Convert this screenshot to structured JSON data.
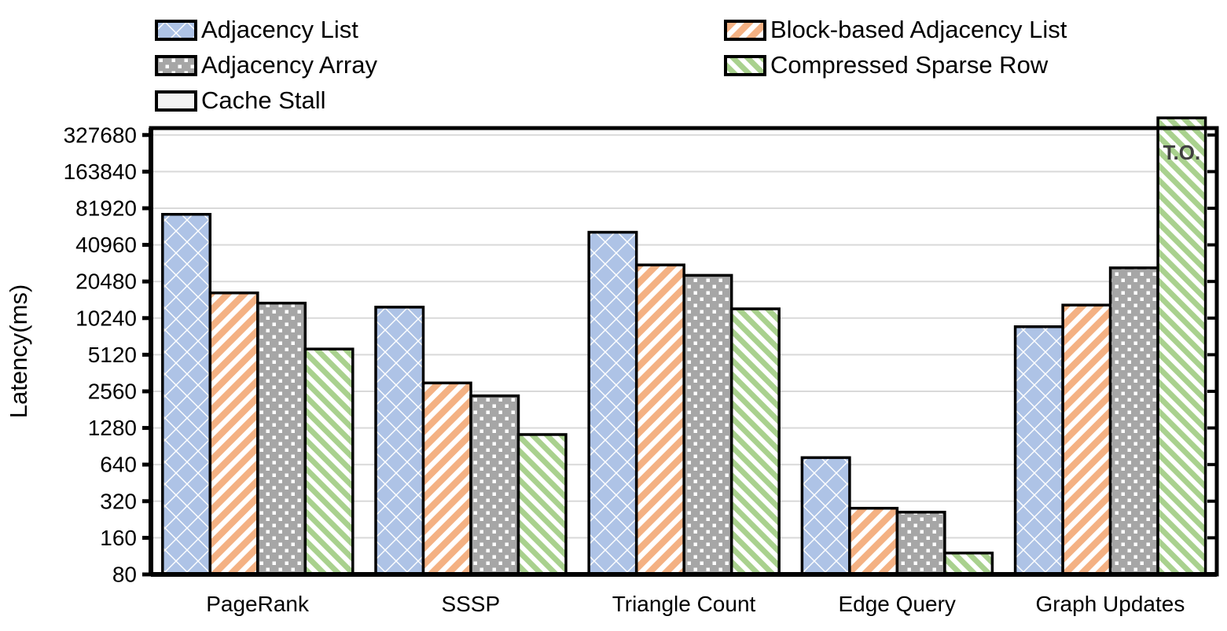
{
  "figure": {
    "kind": "grouped-bar-chart-log-scale",
    "background": "#ffffff",
    "text_color": "#000000",
    "gridline_color": "#d9d9d9",
    "frame_color": "#000000"
  },
  "legend": {
    "position": "top",
    "columns": [
      [
        {
          "label": "Adjacency List",
          "pattern": "blue-diamonds"
        },
        {
          "label": "Adjacency Array",
          "pattern": "gray-dots"
        },
        {
          "label": "Cache Stall",
          "pattern": "plain"
        }
      ],
      [
        {
          "label": "Block-based Adjacency List",
          "pattern": "orange-stripes"
        },
        {
          "label": "Compressed Sparse Row",
          "pattern": "green-stripes"
        }
      ]
    ]
  },
  "chart_data": {
    "type": "bar",
    "scale": "log2",
    "title": "",
    "xlabel": "",
    "ylabel": "Latency(ms)",
    "categories": [
      "PageRank",
      "SSSP",
      "Triangle Count",
      "Edge Query",
      "Graph Updates"
    ],
    "yticks": [
      80,
      160,
      320,
      640,
      1280,
      2560,
      5120,
      10240,
      20480,
      40960,
      81920,
      163840,
      327680
    ],
    "ylim": [
      80,
      450000
    ],
    "grid": "horizontal",
    "legend_position": "top",
    "series": [
      {
        "name": "Adjacency List",
        "pattern": "blue-diamonds",
        "color": "#aec3e6",
        "values": [
          73000,
          12600,
          52000,
          730,
          8700
        ]
      },
      {
        "name": "Block-based Adjacency List",
        "pattern": "orange-stripes",
        "color": "#f4b183",
        "values": [
          16500,
          3000,
          28000,
          280,
          13100
        ]
      },
      {
        "name": "Adjacency Array",
        "pattern": "gray-dots",
        "color": "#a6a6a6",
        "values": [
          13600,
          2350,
          23000,
          260,
          26500
        ]
      },
      {
        "name": "Compressed Sparse Row",
        "pattern": "green-stripes",
        "color": "#a9d18e",
        "values": [
          5700,
          1130,
          12200,
          120,
          null
        ]
      }
    ],
    "extra_legend_entry": {
      "name": "Cache Stall",
      "pattern": "plain",
      "color": "#f2f2f2"
    },
    "annotations": [
      {
        "text": "T.O.",
        "meaning": "timeout (bar clipped at top of axis)",
        "series": "Compressed Sparse Row",
        "category": "Graph Updates",
        "color": "#404040"
      }
    ]
  }
}
